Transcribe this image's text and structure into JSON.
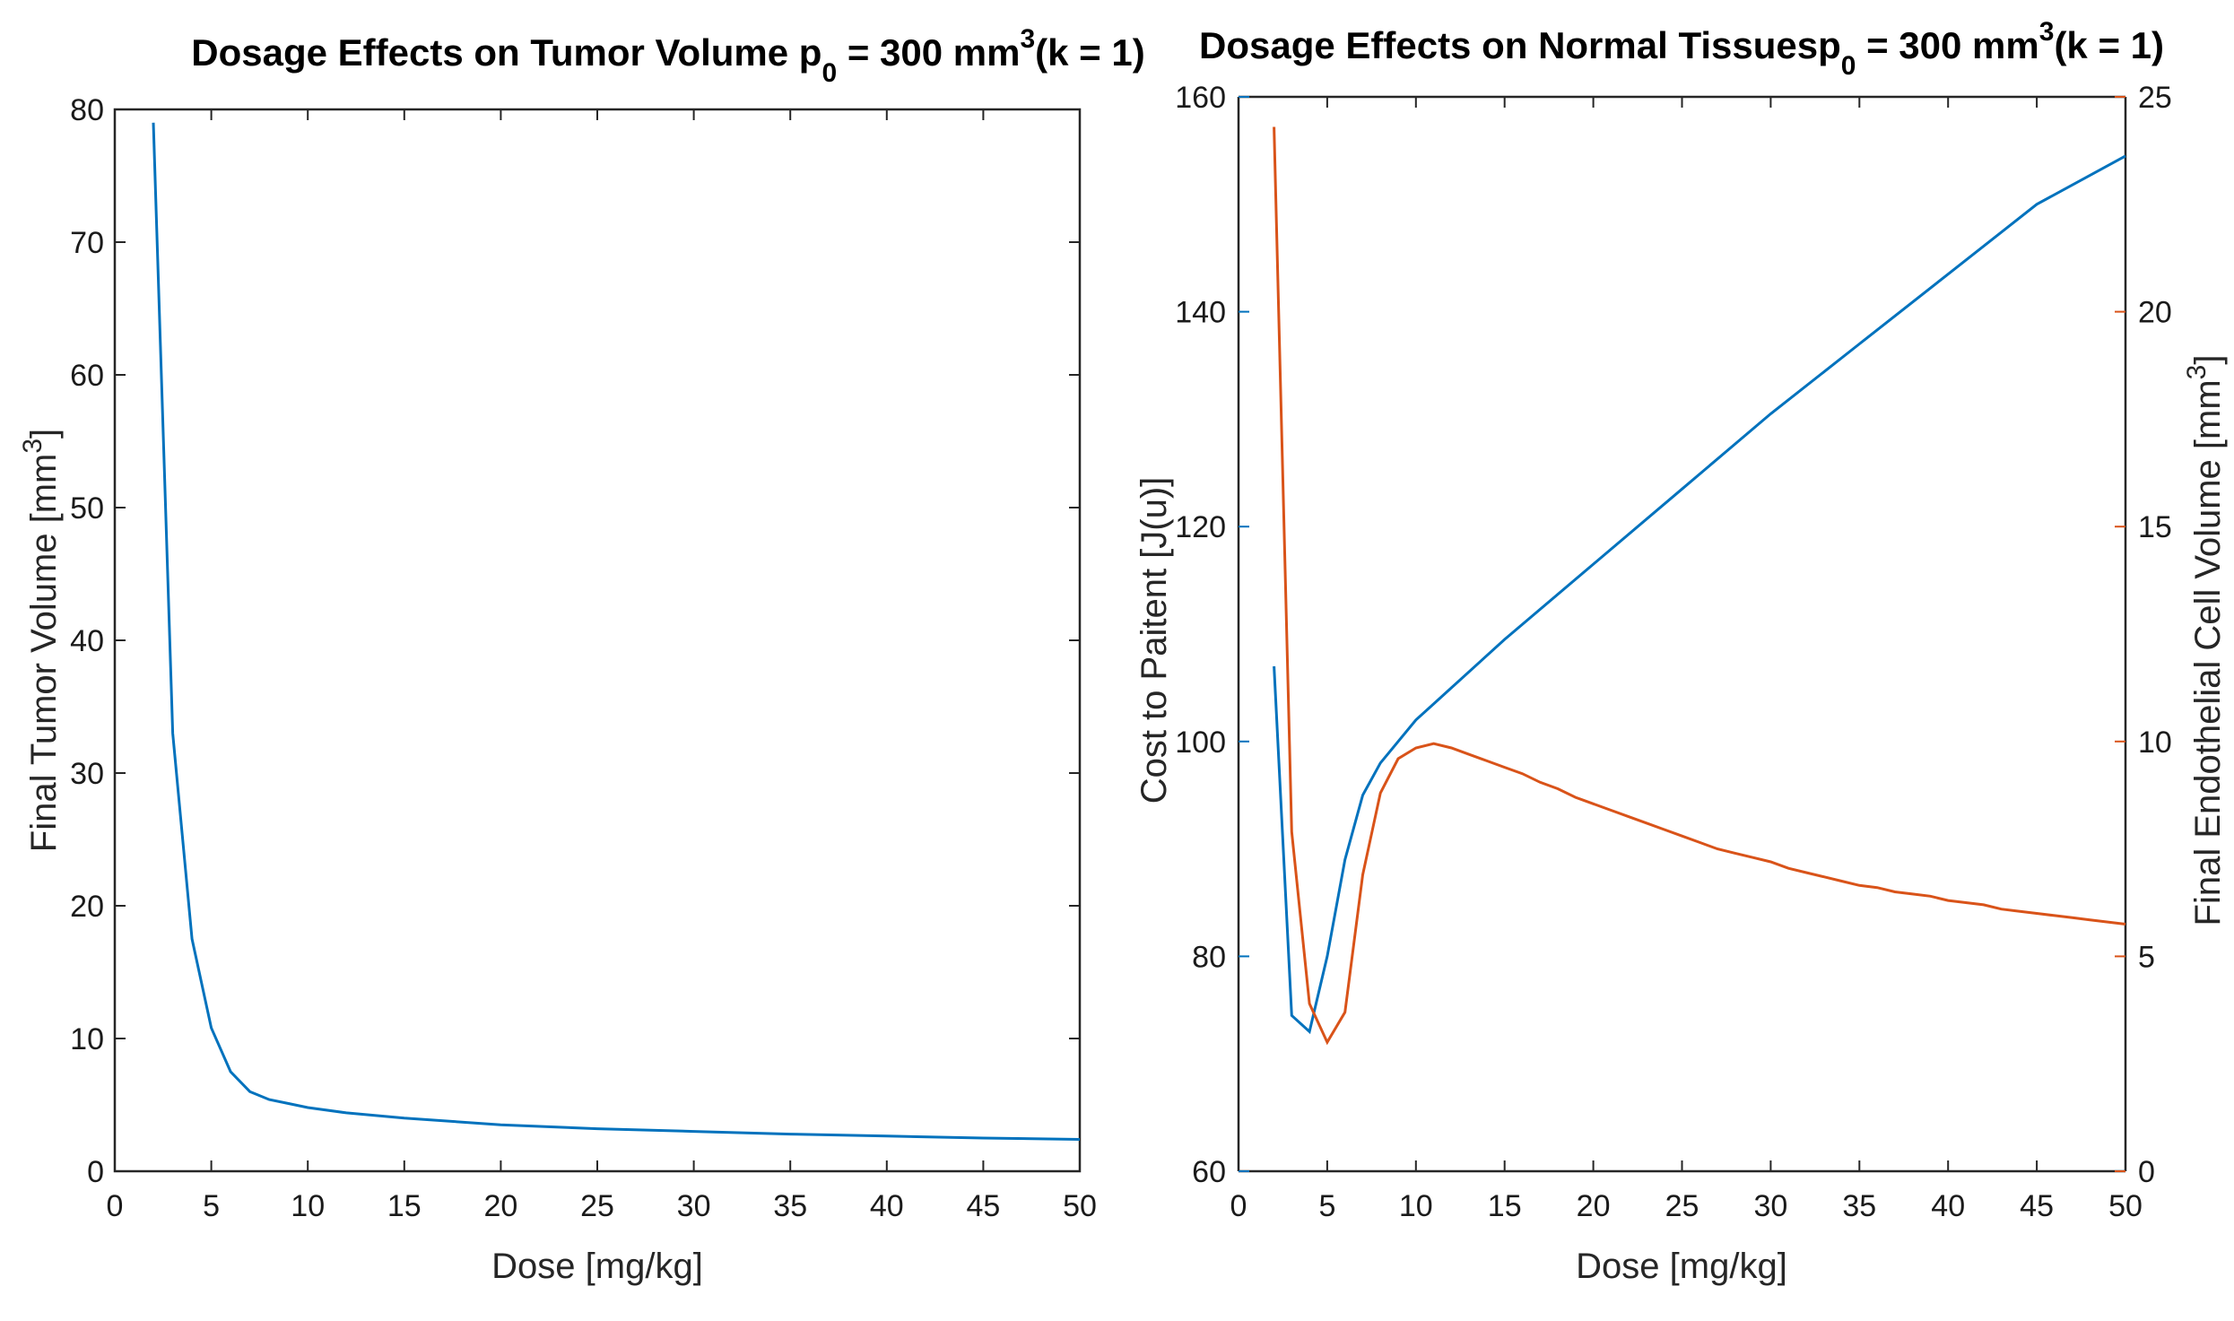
{
  "chart_data": [
    {
      "type": "line",
      "title": "Dosage Effects on Tumor Volume p",
      "title_sub": "0",
      "title_mid": " = 300 mm",
      "title_sup": "3",
      "title_end": "(k = 1)",
      "xlabel": "Dose [mg/kg]",
      "ylabel": "Final Tumor Volume [mm",
      "ylabel_sup": "3",
      "ylabel_end": "]",
      "xlim": [
        0,
        50
      ],
      "ylim": [
        0,
        80
      ],
      "xticks": [
        0,
        5,
        10,
        15,
        20,
        25,
        30,
        35,
        40,
        45,
        50
      ],
      "yticks": [
        0,
        10,
        20,
        30,
        40,
        50,
        60,
        70,
        80
      ],
      "series": [
        {
          "name": "Final Tumor Volume",
          "color": "#0072BD",
          "x": [
            2,
            3,
            4,
            5,
            6,
            7,
            8,
            9,
            10,
            12,
            15,
            20,
            25,
            30,
            35,
            40,
            45,
            50
          ],
          "y": [
            79,
            33,
            17.5,
            10.8,
            7.5,
            6.0,
            5.4,
            5.1,
            4.8,
            4.4,
            4.0,
            3.5,
            3.2,
            3.0,
            2.8,
            2.65,
            2.5,
            2.4
          ]
        }
      ]
    },
    {
      "type": "line",
      "title": "Dosage Effects on Normal Tissuesp",
      "title_sub": "0",
      "title_mid": " = 300 mm",
      "title_sup": "3",
      "title_end": "(k = 1)",
      "xlabel": "Dose [mg/kg]",
      "ylabel_left": "Cost to Paitent [J(u)]",
      "ylabel_right": "Final Endothelial Cell Volume [mm",
      "ylabel_right_sup": "3",
      "ylabel_right_end": "]",
      "xlim": [
        0,
        50
      ],
      "ylim_left": [
        60,
        160
      ],
      "ylim_right": [
        0,
        25
      ],
      "xticks": [
        0,
        5,
        10,
        15,
        20,
        25,
        30,
        35,
        40,
        45,
        50
      ],
      "yticks_left": [
        60,
        80,
        100,
        120,
        140,
        160
      ],
      "yticks_right": [
        0,
        5,
        10,
        15,
        20,
        25
      ],
      "left_color": "#0072BD",
      "right_color": "#D95319",
      "series": [
        {
          "name": "Cost to Paitent",
          "axis": "left",
          "color": "#0072BD",
          "x": [
            2,
            3,
            4,
            5,
            6,
            7,
            8,
            9,
            10,
            11,
            12,
            15,
            20,
            25,
            30,
            35,
            40,
            45,
            50
          ],
          "y": [
            107,
            74.5,
            73,
            80,
            89,
            95,
            98,
            100,
            102,
            103.5,
            105,
            109.5,
            116.5,
            123.5,
            130.5,
            137,
            143.5,
            150,
            154.5
          ]
        },
        {
          "name": "Final Endothelial Cell Volume",
          "axis": "right",
          "color": "#D95319",
          "x": [
            2,
            3,
            4,
            5,
            6,
            7,
            8,
            9,
            10,
            11,
            12,
            13,
            14,
            15,
            16,
            17,
            18,
            19,
            20,
            21,
            22,
            23,
            24,
            25,
            26,
            27,
            28,
            29,
            30,
            31,
            32,
            33,
            34,
            35,
            36,
            37,
            38,
            39,
            40,
            41,
            42,
            43,
            44,
            45,
            46,
            47,
            48,
            49,
            50
          ],
          "y": [
            24.3,
            7.9,
            3.9,
            3.0,
            3.7,
            6.9,
            8.8,
            9.6,
            9.85,
            9.95,
            9.85,
            9.7,
            9.55,
            9.4,
            9.25,
            9.05,
            8.9,
            8.7,
            8.55,
            8.4,
            8.25,
            8.1,
            7.95,
            7.8,
            7.65,
            7.5,
            7.4,
            7.3,
            7.2,
            7.05,
            6.95,
            6.85,
            6.75,
            6.65,
            6.6,
            6.5,
            6.45,
            6.4,
            6.3,
            6.25,
            6.2,
            6.1,
            6.05,
            6.0,
            5.95,
            5.9,
            5.85,
            5.8,
            5.75
          ]
        }
      ]
    }
  ]
}
